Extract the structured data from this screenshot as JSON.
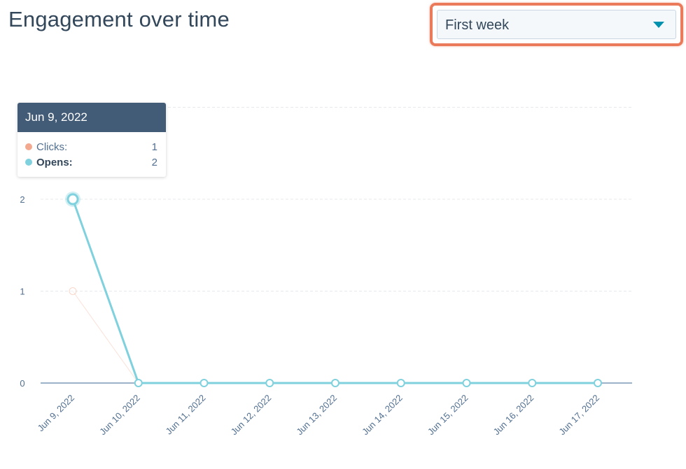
{
  "title": "Engagement over time",
  "dropdown": {
    "value": "First week"
  },
  "tooltip": {
    "date": "Jun 9, 2022",
    "rows": [
      {
        "label": "Clicks:",
        "value": "1"
      },
      {
        "label": "Opens:",
        "value": "2"
      }
    ]
  },
  "colors": {
    "clicks": "#f2a98f",
    "opens": "#7fd1de",
    "accent": "#0091ae",
    "highlight": "#ea7a5a"
  },
  "chart_data": {
    "type": "line",
    "categories": [
      "Jun 9, 2022",
      "Jun 10, 2022",
      "Jun 11, 2022",
      "Jun 12, 2022",
      "Jun 13, 2022",
      "Jun 14, 2022",
      "Jun 15, 2022",
      "Jun 16, 2022",
      "Jun 17, 2022"
    ],
    "series": [
      {
        "name": "Clicks",
        "values": [
          1,
          0,
          0,
          0,
          0,
          0,
          0,
          0,
          0
        ]
      },
      {
        "name": "Opens",
        "values": [
          2,
          0,
          0,
          0,
          0,
          0,
          0,
          0,
          0
        ]
      }
    ],
    "yticks": [
      "0",
      "1",
      "2"
    ],
    "ylim": [
      0,
      3
    ],
    "grid": true,
    "highlighted_index": 0
  }
}
